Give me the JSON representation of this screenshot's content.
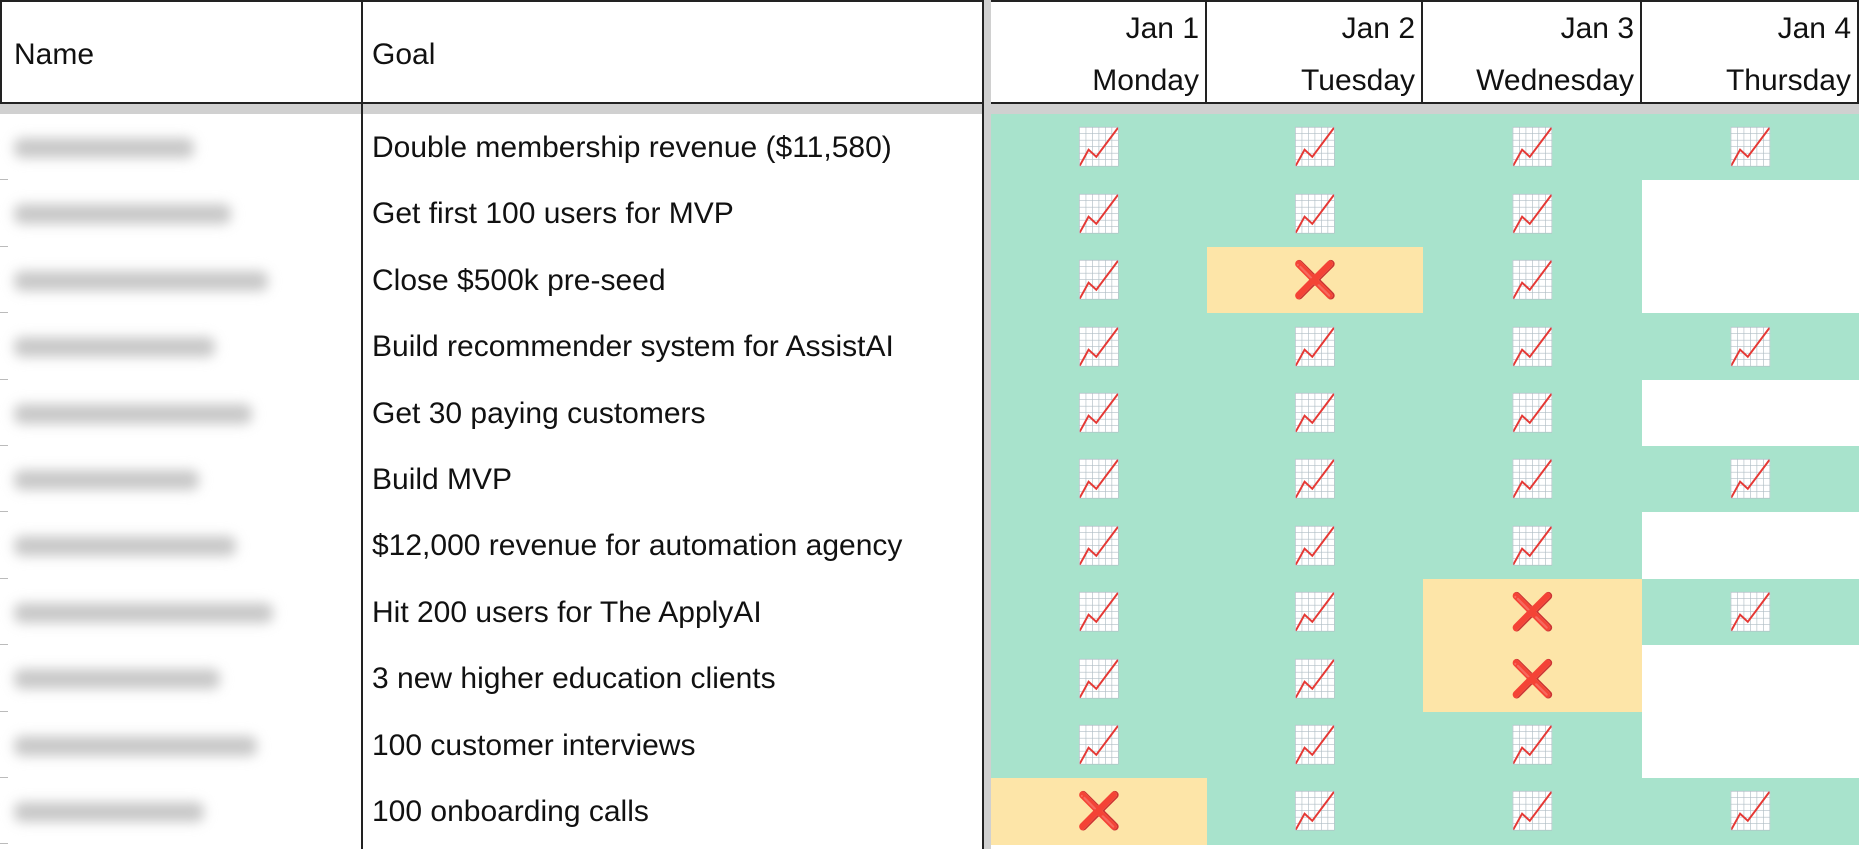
{
  "table": {
    "columns": [
      "Name",
      "Goal"
    ],
    "days": [
      {
        "date": "Jan 1",
        "weekday": "Monday"
      },
      {
        "date": "Jan 2",
        "weekday": "Tuesday"
      },
      {
        "date": "Jan 3",
        "weekday": "Wednesday"
      },
      {
        "date": "Jan 4",
        "weekday": "Thursday"
      }
    ],
    "rows": [
      {
        "goal": "Double membership revenue ($11,580)",
        "days": [
          "📈",
          "📈",
          "📈",
          "📈"
        ]
      },
      {
        "goal": "Get first 100 users for MVP",
        "days": [
          "📈",
          "📈",
          "📈",
          null
        ]
      },
      {
        "goal": "Close $500k pre-seed",
        "days": [
          "📈",
          "❌",
          "📈",
          null
        ]
      },
      {
        "goal": "Build recommender system for AssistAI",
        "days": [
          "📈",
          "📈",
          "📈",
          "📈"
        ]
      },
      {
        "goal": "Get 30 paying customers",
        "days": [
          "📈",
          "📈",
          "📈",
          null
        ]
      },
      {
        "goal": "Build MVP",
        "days": [
          "📈",
          "📈",
          "📈",
          "📈"
        ]
      },
      {
        "goal": "$12,000 revenue for automation agency",
        "days": [
          "📈",
          "📈",
          "📈",
          null
        ]
      },
      {
        "goal": "Hit 200 users for The ApplyAI",
        "days": [
          "📈",
          "📈",
          "❌",
          "📈"
        ]
      },
      {
        "goal": "3 new higher education clients",
        "days": [
          "📈",
          "📈",
          "❌",
          null
        ]
      },
      {
        "goal": "100 customer interviews",
        "days": [
          "📈",
          "📈",
          "📈",
          null
        ]
      },
      {
        "goal": "100 onboarding calls",
        "days": [
          "❌",
          "📈",
          "📈",
          "📈"
        ]
      }
    ]
  }
}
